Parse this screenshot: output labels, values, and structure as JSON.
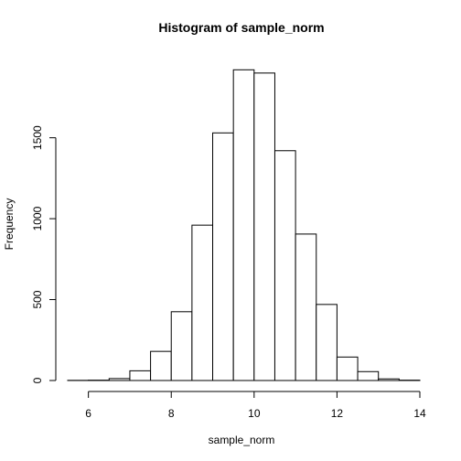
{
  "chart_data": {
    "type": "bar",
    "title": "Histogram of sample_norm",
    "xlabel": "sample_norm",
    "ylabel": "Frequency",
    "bins": [
      {
        "x0": 5.5,
        "x1": 6.0,
        "count": 1
      },
      {
        "x0": 6.0,
        "x1": 6.5,
        "count": 2
      },
      {
        "x0": 6.5,
        "x1": 7.0,
        "count": 12
      },
      {
        "x0": 7.0,
        "x1": 7.5,
        "count": 60
      },
      {
        "x0": 7.5,
        "x1": 8.0,
        "count": 180
      },
      {
        "x0": 8.0,
        "x1": 8.5,
        "count": 425
      },
      {
        "x0": 8.5,
        "x1": 9.0,
        "count": 960
      },
      {
        "x0": 9.0,
        "x1": 9.5,
        "count": 1530
      },
      {
        "x0": 9.5,
        "x1": 10.0,
        "count": 1920
      },
      {
        "x0": 10.0,
        "x1": 10.5,
        "count": 1900
      },
      {
        "x0": 10.5,
        "x1": 11.0,
        "count": 1420
      },
      {
        "x0": 11.0,
        "x1": 11.5,
        "count": 905
      },
      {
        "x0": 11.5,
        "x1": 12.0,
        "count": 470
      },
      {
        "x0": 12.0,
        "x1": 12.5,
        "count": 145
      },
      {
        "x0": 12.5,
        "x1": 13.0,
        "count": 55
      },
      {
        "x0": 13.0,
        "x1": 13.5,
        "count": 10
      },
      {
        "x0": 13.5,
        "x1": 14.0,
        "count": 2
      }
    ],
    "xlim": [
      5.5,
      14
    ],
    "ylim": [
      0,
      1950
    ],
    "x_ticks": [
      6,
      8,
      10,
      12,
      14
    ],
    "x_tick_labels": [
      "6",
      "8",
      "10",
      "12",
      "14"
    ],
    "y_ticks": [
      0,
      500,
      1000,
      1500
    ],
    "y_tick_labels": [
      "0",
      "500",
      "1000",
      "1500"
    ],
    "grid": false
  }
}
